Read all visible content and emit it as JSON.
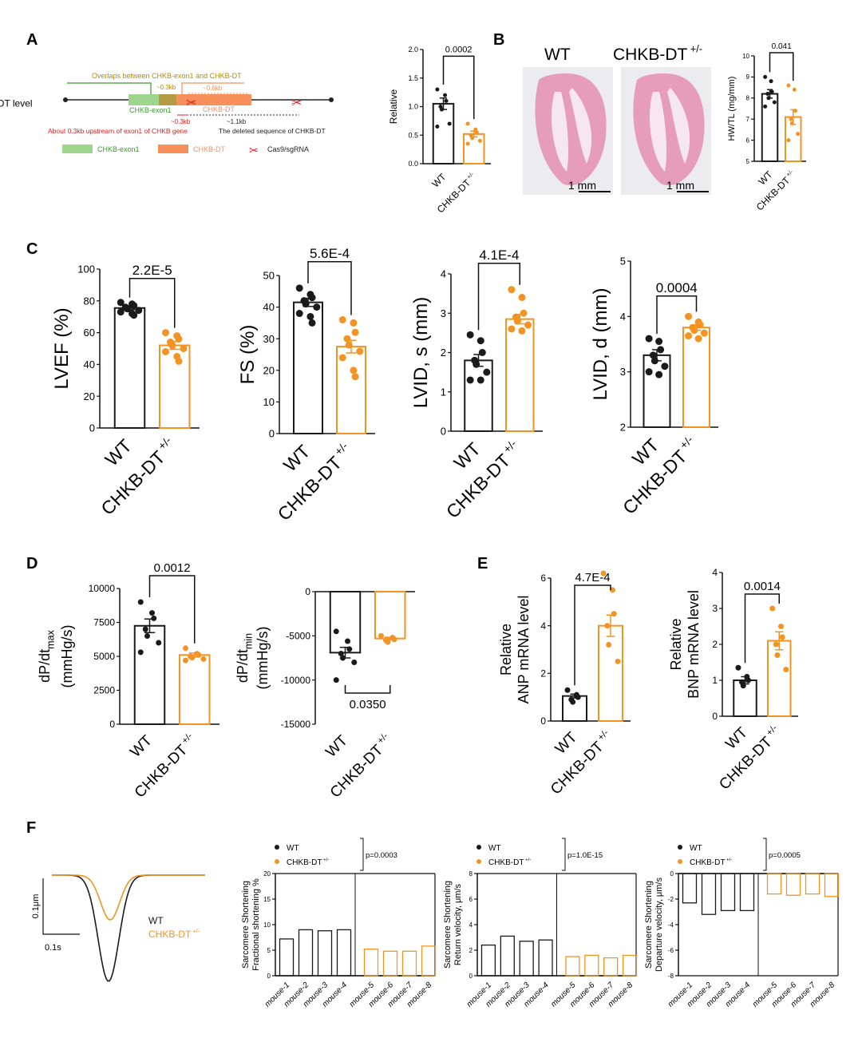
{
  "colors": {
    "wt": "#1a1a1a",
    "ko": "#f39322",
    "exon": "#9fd68e",
    "dt": "#f7905a",
    "overlap": "#b59a45",
    "red": "#e02020",
    "green": "#3a9a2a",
    "gold": "#b08a10",
    "tissue": "#e58fb0"
  },
  "panel_letters": [
    "A",
    "B",
    "C",
    "D",
    "E",
    "F"
  ],
  "genotype_sup": "+/-",
  "diagram": {
    "overlap_label": "Overlaps between CHKB-exon1 and CHKB-DT",
    "kb03_top": "~0.3kb",
    "kb06": "~0.6kb",
    "exon_label": "CHKB-exon1",
    "dt_label": "CHKB-DT",
    "kb03_bottom": "~0.3kb",
    "kb11": "~1.1kb",
    "upstream_note": "About 0.3kb upstream of exon1 of CHKB gene",
    "deleted_note": "The deleted sequence of CHKB-DT",
    "legend": [
      "CHKB-exon1",
      "CHKB-DT",
      "Cas9/sgRNA"
    ]
  },
  "histology": {
    "wt_title": "WT",
    "ko_title": "CHKB-DT",
    "scale_bar": "1 mm"
  },
  "chart_data": [
    {
      "type": "bar",
      "id": "A-chkbdt",
      "ylabel": [
        "Relative",
        "CHKB-DT level"
      ],
      "ylim": [
        0,
        2
      ],
      "ticks": [
        0,
        0.5,
        1,
        1.5,
        2
      ],
      "tick_labels": [
        "0.0",
        "0.5",
        "1.0",
        "1.5",
        "2.0"
      ],
      "categories": [
        "WT",
        "CHKB-DT"
      ],
      "values": [
        1.05,
        0.52
      ],
      "sem": [
        0.1,
        0.05
      ],
      "points": [
        [
          1.3,
          1.2,
          1.1,
          1.0,
          0.95,
          0.7,
          0.65
        ],
        [
          0.7,
          0.6,
          0.55,
          0.5,
          0.45,
          0.4,
          0.35
        ]
      ],
      "p_value": "0.0002"
    },
    {
      "type": "bar",
      "id": "B-hwtl",
      "ylabel": [
        "HW/TL (mg/mm)"
      ],
      "ylim": [
        5,
        10
      ],
      "ticks": [
        5,
        6,
        7,
        8,
        9,
        10
      ],
      "tick_labels": [
        "5",
        "6",
        "7",
        "8",
        "9",
        "10"
      ],
      "categories": [
        "WT",
        "CHKB-DT"
      ],
      "values": [
        8.2,
        7.1
      ],
      "sem": [
        0.2,
        0.35
      ],
      "points": [
        [
          9.0,
          8.8,
          8.3,
          8.2,
          8.0,
          7.8,
          7.6
        ],
        [
          8.6,
          8.4,
          7.4,
          7.0,
          6.8,
          6.3,
          6.0
        ]
      ],
      "p_value": "0.041"
    },
    {
      "type": "bar",
      "id": "C-lvef",
      "ylabel": [
        "LVEF (%)"
      ],
      "ylim": [
        0,
        100
      ],
      "ticks": [
        0,
        20,
        40,
        60,
        80,
        100
      ],
      "tick_labels": [
        "0",
        "20",
        "40",
        "60",
        "80",
        "100"
      ],
      "categories": [
        "WT",
        "CHKB-DT"
      ],
      "values": [
        75.5,
        52
      ],
      "sem": [
        1,
        2.5
      ],
      "points": [
        [
          79,
          78,
          77,
          76,
          75,
          74,
          73,
          72,
          71
        ],
        [
          60,
          58,
          56,
          54,
          52,
          50,
          48,
          45,
          42
        ]
      ],
      "p_value": "2.2E-5"
    },
    {
      "type": "bar",
      "id": "C-fs",
      "ylabel": [
        "FS (%)"
      ],
      "ylim": [
        0,
        50
      ],
      "ticks": [
        0,
        10,
        20,
        30,
        40,
        50
      ],
      "tick_labels": [
        "0",
        "10",
        "20",
        "30",
        "40",
        "50"
      ],
      "categories": [
        "WT",
        "CHKB-DT"
      ],
      "values": [
        41.5,
        27.5
      ],
      "sem": [
        1.3,
        2
      ],
      "points": [
        [
          46,
          44,
          43,
          42,
          41,
          40,
          38,
          37,
          35
        ],
        [
          36,
          35,
          32,
          30,
          28,
          26,
          24,
          20,
          18
        ]
      ],
      "p_value": "5.6E-4"
    },
    {
      "type": "bar",
      "id": "C-lvids",
      "ylabel": [
        "LVID, s (mm)"
      ],
      "ylim": [
        0,
        4
      ],
      "ticks": [
        0,
        1,
        2,
        3,
        4
      ],
      "tick_labels": [
        "0",
        "1",
        "2",
        "3",
        "4"
      ],
      "categories": [
        "WT",
        "CHKB-DT"
      ],
      "values": [
        1.8,
        2.85
      ],
      "sem": [
        0.15,
        0.12
      ],
      "points": [
        [
          2.45,
          2.3,
          2.0,
          1.8,
          1.7,
          1.5,
          1.3,
          1.3
        ],
        [
          3.6,
          3.4,
          3.0,
          2.9,
          2.8,
          2.7,
          2.6,
          2.55
        ]
      ],
      "p_value": "4.1E-4"
    },
    {
      "type": "bar",
      "id": "C-lvidd",
      "ylabel": [
        "LVID, d (mm)"
      ],
      "ylim": [
        2,
        5
      ],
      "ticks": [
        2,
        3,
        4,
        5
      ],
      "tick_labels": [
        "2",
        "3",
        "4",
        "5"
      ],
      "categories": [
        "WT",
        "CHKB-DT"
      ],
      "values": [
        3.3,
        3.8
      ],
      "sem": [
        0.1,
        0.05
      ],
      "points": [
        [
          3.6,
          3.55,
          3.4,
          3.3,
          3.2,
          3.1,
          3.0,
          2.95
        ],
        [
          4.0,
          3.9,
          3.85,
          3.8,
          3.75,
          3.7,
          3.65,
          3.6
        ]
      ],
      "p_value": "0.0004"
    },
    {
      "type": "bar",
      "id": "D-dpdtmax",
      "ylabel": [
        "dP/dt",
        "(mmHg/s)"
      ],
      "ylabel_sub": "max",
      "ylim": [
        0,
        10000
      ],
      "ticks": [
        0,
        2500,
        5000,
        7500,
        10000
      ],
      "tick_labels": [
        "0",
        "2500",
        "5000",
        "7500",
        "10000"
      ],
      "categories": [
        "WT",
        "CHKB-DT"
      ],
      "values": [
        7250,
        5100
      ],
      "sem": [
        500,
        150
      ],
      "points": [
        [
          9000,
          8200,
          7800,
          7000,
          6500,
          6000,
          5300
        ],
        [
          5600,
          5200,
          5100,
          5000,
          4900,
          4800,
          4700
        ]
      ],
      "p_value": "0.0012"
    },
    {
      "type": "bar",
      "id": "D-dpdtmin",
      "ylabel": [
        "dP/dt",
        "(mmHg/s)"
      ],
      "ylabel_sub": "min",
      "ylim": [
        -15000,
        0
      ],
      "ticks": [
        -15000,
        -10000,
        -5000,
        0
      ],
      "tick_labels": [
        "-15000",
        "-10000",
        "-5000",
        "0"
      ],
      "categories": [
        "WT",
        "CHKB-DT"
      ],
      "values": [
        -6900,
        -5300
      ],
      "sem": [
        600,
        150
      ],
      "points": [
        [
          -4500,
          -5600,
          -6500,
          -7000,
          -7500,
          -8000,
          -10000
        ],
        [
          -5000,
          -5200,
          -5400,
          -5500,
          -5700
        ]
      ],
      "p_value": "0.0350"
    },
    {
      "type": "bar",
      "id": "E-anp",
      "ylabel": [
        "Relative",
        "ANP mRNA level"
      ],
      "ylim": [
        0,
        6
      ],
      "ticks": [
        0,
        2,
        4,
        6
      ],
      "tick_labels": [
        "0",
        "2",
        "4",
        "6"
      ],
      "categories": [
        "WT",
        "CHKB-DT"
      ],
      "values": [
        1.05,
        4.0
      ],
      "sem": [
        0.08,
        0.45
      ],
      "points": [
        [
          1.3,
          1.1,
          1.0,
          0.9,
          0.8
        ],
        [
          6.2,
          5.5,
          4.5,
          4.0,
          3.2,
          2.5
        ]
      ],
      "p_value": "4.7E-4"
    },
    {
      "type": "bar",
      "id": "E-bnp",
      "ylabel": [
        "Relative",
        "BNP mRNA level"
      ],
      "ylim": [
        0,
        4
      ],
      "ticks": [
        0,
        1,
        2,
        3,
        4
      ],
      "tick_labels": [
        "0",
        "1",
        "2",
        "3",
        "4"
      ],
      "categories": [
        "WT",
        "CHKB-DT"
      ],
      "values": [
        1.0,
        2.1
      ],
      "sem": [
        0.1,
        0.25
      ],
      "points": [
        [
          1.35,
          1.1,
          1.0,
          0.95,
          0.85
        ],
        [
          3.0,
          2.5,
          2.2,
          2.0,
          1.7,
          1.3
        ]
      ],
      "p_value": "0.0014"
    },
    {
      "type": "line",
      "id": "F-trace",
      "series": [
        {
          "name": "WT",
          "peak_shortening_um": 0.19
        },
        {
          "name": "CHKB-DT",
          "peak_shortening_um": 0.08
        }
      ],
      "scale_y": "0.1μm",
      "scale_x": "0.1s"
    },
    {
      "type": "bar",
      "id": "F-fs",
      "ylabel": [
        "Sarcomere Shortening",
        "Fractional shortening %"
      ],
      "ylim": [
        0,
        20
      ],
      "ticks": [
        0,
        5,
        10,
        15,
        20
      ],
      "tick_labels": [
        "0",
        "5",
        "10",
        "15",
        "20"
      ],
      "categories": [
        "mouse-1",
        "mouse-2",
        "mouse-3",
        "mouse-4",
        "mouse-5",
        "mouse-6",
        "mouse-7",
        "mouse-8"
      ],
      "values": [
        7.2,
        9.0,
        8.8,
        9.0,
        5.2,
        4.8,
        4.8,
        5.8
      ],
      "legend": [
        "WT",
        "CHKB-DT"
      ],
      "p_value": "p=0.0003"
    },
    {
      "type": "bar",
      "id": "F-return",
      "ylabel": [
        "Sarcomere Shortening",
        "Return velocity,  μm/s"
      ],
      "ylim": [
        0,
        8
      ],
      "ticks": [
        0,
        2,
        4,
        6,
        8
      ],
      "tick_labels": [
        "0",
        "2",
        "4",
        "6",
        "8"
      ],
      "categories": [
        "mouse-1",
        "mouse-2",
        "mouse-3",
        "mouse-4",
        "mouse-5",
        "mouse-6",
        "mouse-7",
        "mouse-8"
      ],
      "values": [
        2.4,
        3.1,
        2.7,
        2.8,
        1.5,
        1.6,
        1.4,
        1.6
      ],
      "legend": [
        "WT",
        "CHKB-DT"
      ],
      "p_value": "p=1.0E-15"
    },
    {
      "type": "bar",
      "id": "F-departure",
      "ylabel": [
        "Sarcomere Shortening",
        "Departure velocity,  μm/s"
      ],
      "ylim": [
        -8,
        0
      ],
      "ticks": [
        -8,
        -6,
        -4,
        -2,
        0
      ],
      "tick_labels": [
        "-8",
        "-6",
        "-4",
        "-2",
        "0"
      ],
      "categories": [
        "mouse-1",
        "mouse-2",
        "mouse-3",
        "mouse-4",
        "mouse-5",
        "mouse-6",
        "mouse-7",
        "mouse-8"
      ],
      "values": [
        -2.3,
        -3.2,
        -2.9,
        -2.9,
        -1.6,
        -1.7,
        -1.6,
        -1.8
      ],
      "legend": [
        "WT",
        "CHKB-DT"
      ],
      "p_value": "p=0.0005"
    }
  ]
}
